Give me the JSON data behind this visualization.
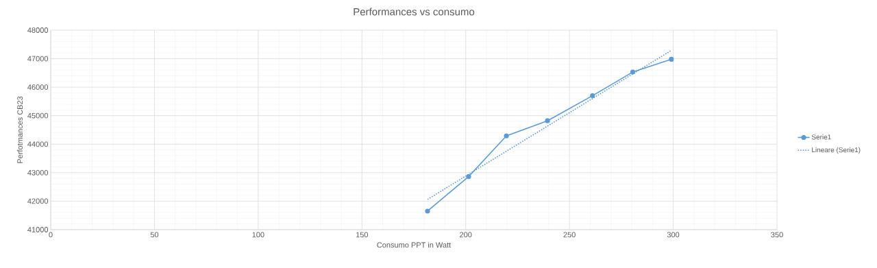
{
  "chart_data": {
    "type": "line",
    "title": "Performances vs consumo",
    "xlabel": "Consumo PPT in Watt",
    "ylabel": "Perfotmances CB23",
    "xlim": [
      0,
      350
    ],
    "xticks": [
      0,
      50,
      100,
      150,
      200,
      250,
      300,
      350
    ],
    "ylim": [
      41000,
      48000
    ],
    "yticks": [
      41000,
      42000,
      43000,
      44000,
      45000,
      46000,
      47000,
      48000
    ],
    "grid": true,
    "legend": "right",
    "series": [
      {
        "name": "Serie1",
        "color": "#5b9bd5",
        "marker": "circle",
        "line_style": "solid",
        "x": [
          181.6,
          201.4,
          219.6,
          239.4,
          261.1,
          280.5,
          299.1
        ],
        "values": [
          41650,
          42860,
          44290,
          44820,
          45700,
          46530,
          46980
        ]
      },
      {
        "name": "Lineare (Serie1)",
        "type": "line",
        "color": "#5b9bd5",
        "marker": "none",
        "line_style": "dotted",
        "x": [
          181.6,
          299.1
        ],
        "values": [
          42060,
          47290
        ]
      }
    ]
  }
}
